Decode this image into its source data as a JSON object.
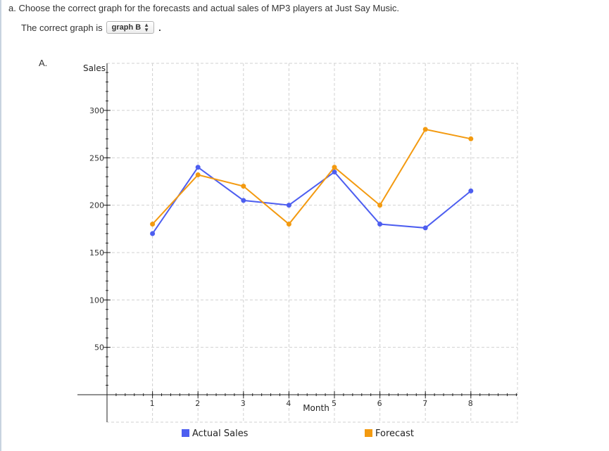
{
  "question": {
    "text": "a. Choose the correct graph for the forecasts and actual sales of MP3 players at Just Say Music.",
    "answer_prefix": "The correct graph is",
    "select_value": "graph B",
    "answer_suffix": "."
  },
  "graph_letter": "A.",
  "chart_data": {
    "type": "line",
    "title": "",
    "xlabel": "Month",
    "ylabel": "Sales",
    "x": [
      1,
      2,
      3,
      4,
      5,
      6,
      7,
      8
    ],
    "x_ticks": [
      "1",
      "2",
      "3",
      "4",
      "5",
      "6",
      "7",
      "8"
    ],
    "y_ticks": [
      "50",
      "100",
      "150",
      "200",
      "250",
      "300"
    ],
    "xlim": [
      0,
      9
    ],
    "ylim": [
      0,
      340
    ],
    "grid": true,
    "legend_position": "bottom",
    "series": [
      {
        "name": "Actual Sales",
        "color": "#4d5ef0",
        "values": [
          170,
          240,
          205,
          200,
          235,
          180,
          176,
          215
        ]
      },
      {
        "name": "Forecast",
        "color": "#f39a10",
        "values": [
          180,
          232,
          220,
          180,
          240,
          200,
          280,
          270
        ]
      }
    ]
  }
}
